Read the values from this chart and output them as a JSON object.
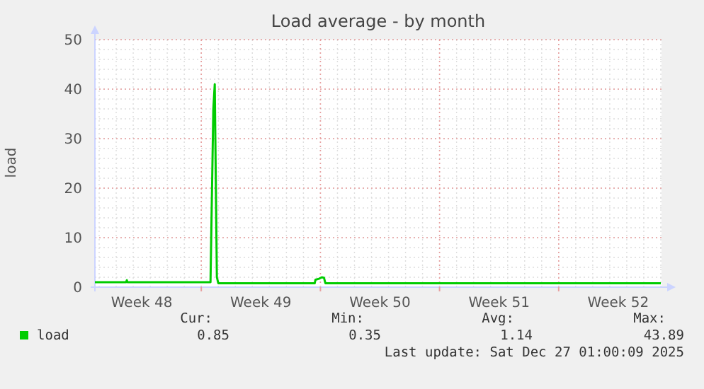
{
  "chart_data": {
    "type": "line",
    "title": "Load average - by month",
    "ylabel": "load",
    "x": [
      "2025-11-23T18:00",
      "2025-11-25T14:00",
      "2025-11-25T15:00",
      "2025-11-25T16:00",
      "2025-11-30T13:00",
      "2025-11-30T17:00",
      "2025-11-30T19:00",
      "2025-11-30T22:00",
      "2025-12-01T00:00",
      "2025-12-06T16:00",
      "2025-12-06T17:00",
      "2025-12-06T22:00",
      "2025-12-07T02:00",
      "2025-12-07T05:00",
      "2025-12-07T07:00",
      "2025-12-27T00:00"
    ],
    "series": [
      {
        "name": "load",
        "color": "#00cc00",
        "values": [
          1.0,
          1.0,
          1.4,
          1.0,
          1.0,
          36,
          41,
          2,
          0.8,
          0.8,
          1.5,
          1.7,
          2.0,
          1.9,
          0.8,
          0.8
        ]
      }
    ],
    "xlim": [
      "2025-11-23T18:00",
      "2025-12-27T01:00"
    ],
    "xticks": [
      {
        "value": "2025-11-26T12:00",
        "label": "Week 48"
      },
      {
        "value": "2025-11-30T00:00",
        "label": null
      },
      {
        "value": "2025-12-03T12:00",
        "label": "Week 49"
      },
      {
        "value": "2025-12-07T00:00",
        "label": null
      },
      {
        "value": "2025-12-10T12:00",
        "label": "Week 50"
      },
      {
        "value": "2025-12-14T00:00",
        "label": null
      },
      {
        "value": "2025-12-17T12:00",
        "label": "Week 51"
      },
      {
        "value": "2025-12-21T00:00",
        "label": null
      },
      {
        "value": "2025-12-24T12:00",
        "label": "Week 52"
      }
    ],
    "ylim": [
      0,
      50
    ],
    "yticks": [
      0,
      10,
      20,
      30,
      40,
      50
    ],
    "grid": true,
    "legend": "bottom",
    "marker": "none",
    "line_style": "solid",
    "annotations": [
      "Cur:",
      "0.85",
      "Min:",
      "0.35",
      "Avg:",
      "1.14",
      "Max:",
      "43.89",
      "Last update: Sat Dec 27 01:00:09 2025"
    ]
  }
}
